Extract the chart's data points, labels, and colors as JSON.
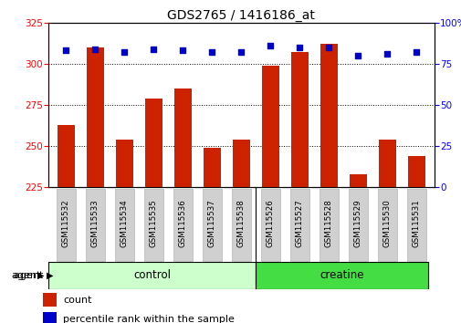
{
  "title": "GDS2765 / 1416186_at",
  "samples": [
    "GSM115532",
    "GSM115533",
    "GSM115534",
    "GSM115535",
    "GSM115536",
    "GSM115537",
    "GSM115538",
    "GSM115526",
    "GSM115527",
    "GSM115528",
    "GSM115529",
    "GSM115530",
    "GSM115531"
  ],
  "counts": [
    263,
    310,
    254,
    279,
    285,
    249,
    254,
    299,
    307,
    312,
    233,
    254,
    244
  ],
  "percentiles": [
    83,
    84,
    82,
    84,
    83,
    82,
    82,
    86,
    85,
    85,
    80,
    81,
    82
  ],
  "groups": [
    "control",
    "control",
    "control",
    "control",
    "control",
    "control",
    "control",
    "creatine",
    "creatine",
    "creatine",
    "creatine",
    "creatine",
    "creatine"
  ],
  "ylim_left": [
    225,
    325
  ],
  "ylim_right": [
    0,
    100
  ],
  "yticks_left": [
    225,
    250,
    275,
    300,
    325
  ],
  "yticks_right": [
    0,
    25,
    50,
    75,
    100
  ],
  "bar_color": "#cc2200",
  "dot_color": "#0000cc",
  "control_color_light": "#ccffcc",
  "creatine_color": "#44dd44",
  "bar_width": 0.6,
  "baseline": 225,
  "figsize": [
    5.06,
    3.54
  ],
  "dpi": 100
}
